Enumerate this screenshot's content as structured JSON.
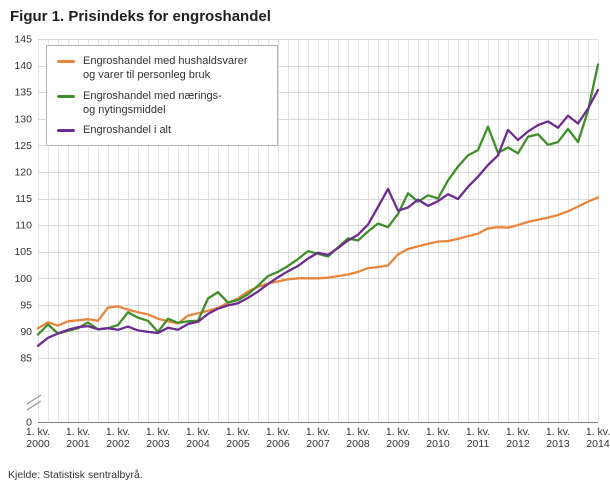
{
  "title": "Figur 1. Prisindeks for engroshandel",
  "source": "Kjelde: Statistisk sentralbyrå.",
  "legend": {
    "items": [
      {
        "label": "Engroshandel med hushaldsvarer\nog varer til personleg bruk"
      },
      {
        "label": "Engroshandel med nærings-\nog nytingsmiddel"
      },
      {
        "label": "Engroshandel i alt"
      }
    ]
  },
  "chart_data": {
    "type": "line",
    "title": "Figur 1. Prisindeks for engroshandel",
    "x_unit": "quarter",
    "x_start": "1. kv. 2000",
    "x_end": "1. kv. 2014",
    "x_tick_prefix": "1. kv.",
    "x_tick_years": [
      "2000",
      "2001",
      "2002",
      "2003",
      "2004",
      "2005",
      "2006",
      "2007",
      "2008",
      "2009",
      "2010",
      "2011",
      "2012",
      "2013",
      "2014"
    ],
    "ylim_visible": [
      85,
      145
    ],
    "ytick_step": 5,
    "y_axis_break_to_zero": true,
    "grid": true,
    "legend_position": "top-left-inside",
    "colors": {
      "grid_vertical": "#e3e3e3",
      "grid_horizontal": "#d9d9d9",
      "axis": "#808080",
      "text": "#333333"
    },
    "series": [
      {
        "name": "Engroshandel med hushaldsvarer og varer til personleg bruk",
        "color": "#e8863d",
        "values": [
          90.6,
          91.7,
          91.1,
          91.9,
          92.1,
          92.3,
          92.0,
          94.5,
          94.7,
          94.1,
          93.6,
          93.2,
          92.4,
          91.9,
          91.5,
          93.0,
          93.4,
          93.9,
          94.4,
          95.4,
          96.2,
          97.5,
          98.4,
          99.0,
          99.4,
          99.8,
          100.0,
          100.0,
          100.0,
          100.1,
          100.4,
          100.7,
          101.2,
          101.9,
          102.1,
          102.4,
          104.5,
          105.5,
          106.0,
          106.5,
          106.9,
          107.0,
          107.4,
          107.9,
          108.4,
          109.4,
          109.6,
          109.5,
          110.0,
          110.6,
          111.0,
          111.4,
          111.9,
          112.6,
          113.5,
          114.4,
          115.2
        ]
      },
      {
        "name": "Engroshandel med nærings- og nytingsmiddel",
        "color": "#3f8f29",
        "values": [
          89.4,
          91.3,
          89.6,
          90.1,
          90.6,
          91.7,
          90.4,
          90.6,
          91.2,
          93.6,
          92.6,
          92.0,
          89.9,
          92.4,
          91.6,
          91.9,
          92.0,
          96.2,
          97.4,
          95.4,
          95.9,
          97.0,
          98.6,
          100.4,
          101.2,
          102.3,
          103.6,
          105.1,
          104.6,
          104.1,
          105.8,
          107.5,
          107.1,
          108.8,
          110.3,
          109.6,
          112.1,
          116.0,
          114.4,
          115.6,
          115.0,
          118.4,
          121.0,
          123.1,
          124.1,
          128.5,
          123.6,
          124.6,
          123.5,
          126.6,
          127.1,
          125.1,
          125.6,
          128.1,
          125.6,
          131.5,
          140.2
        ]
      },
      {
        "name": "Engroshandel i alt",
        "color": "#6e2c90",
        "values": [
          87.3,
          88.8,
          89.6,
          90.3,
          90.8,
          91.0,
          90.4,
          90.6,
          90.3,
          90.9,
          90.2,
          89.9,
          89.7,
          90.7,
          90.3,
          91.4,
          91.8,
          93.3,
          94.3,
          94.9,
          95.3,
          96.3,
          97.5,
          98.9,
          100.2,
          101.3,
          102.3,
          103.7,
          104.8,
          104.4,
          105.7,
          107.1,
          108.2,
          110.1,
          113.4,
          116.8,
          112.7,
          113.3,
          114.8,
          113.6,
          114.5,
          115.8,
          114.9,
          117.2,
          119.1,
          121.3,
          123.1,
          127.9,
          126.0,
          127.6,
          128.8,
          129.5,
          128.3,
          130.6,
          129.1,
          131.9,
          135.4
        ]
      }
    ]
  }
}
